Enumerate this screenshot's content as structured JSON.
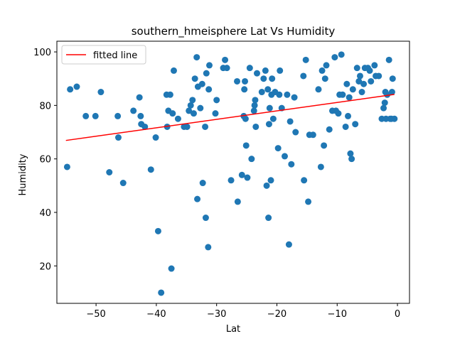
{
  "chart_data": {
    "type": "scatter",
    "title": "southern_hmeisphere Lat Vs Humidity",
    "xlabel": "Lat",
    "ylabel": "Humidity",
    "xlim": [
      -56.5,
      2
    ],
    "ylim": [
      6,
      104
    ],
    "xticks": [
      -50,
      -40,
      -30,
      -20,
      -10,
      0
    ],
    "yticks": [
      20,
      40,
      60,
      80,
      100
    ],
    "grid": false,
    "legend": {
      "placement": "top-left",
      "entries": [
        "fitted line"
      ]
    },
    "colors": {
      "points": "#1f77b4",
      "line": "#ff0000"
    },
    "series": [
      {
        "type": "scatter",
        "points": [
          [
            -54.8,
            57
          ],
          [
            -54.3,
            86
          ],
          [
            -53.2,
            87
          ],
          [
            -51.7,
            76
          ],
          [
            -50.1,
            76
          ],
          [
            -49.2,
            85
          ],
          [
            -47.8,
            55
          ],
          [
            -46.4,
            76
          ],
          [
            -46.3,
            68
          ],
          [
            -45.5,
            51
          ],
          [
            -43.8,
            78
          ],
          [
            -42.8,
            83
          ],
          [
            -42.6,
            76
          ],
          [
            -42.5,
            73
          ],
          [
            -41.9,
            72
          ],
          [
            -40.9,
            56
          ],
          [
            -40.1,
            68
          ],
          [
            -39.7,
            33
          ],
          [
            -39.2,
            10
          ],
          [
            -38.3,
            84
          ],
          [
            -38.2,
            72
          ],
          [
            -38.0,
            78
          ],
          [
            -37.7,
            84
          ],
          [
            -37.5,
            19
          ],
          [
            -37.3,
            77
          ],
          [
            -37.1,
            93
          ],
          [
            -36.4,
            75
          ],
          [
            -35.4,
            72
          ],
          [
            -34.9,
            72
          ],
          [
            -34.6,
            78
          ],
          [
            -34.3,
            80
          ],
          [
            -34.0,
            82
          ],
          [
            -33.8,
            77
          ],
          [
            -33.6,
            90
          ],
          [
            -33.3,
            98
          ],
          [
            -33.2,
            45
          ],
          [
            -33.1,
            87
          ],
          [
            -32.7,
            79
          ],
          [
            -32.4,
            88
          ],
          [
            -32.3,
            51
          ],
          [
            -31.9,
            72
          ],
          [
            -31.8,
            38
          ],
          [
            -31.7,
            92
          ],
          [
            -31.4,
            27
          ],
          [
            -31.3,
            86
          ],
          [
            -31.2,
            95
          ],
          [
            -30.2,
            77
          ],
          [
            -30.0,
            82
          ],
          [
            -28.9,
            94
          ],
          [
            -28.6,
            97
          ],
          [
            -28.3,
            94
          ],
          [
            -27.6,
            52
          ],
          [
            -26.6,
            89
          ],
          [
            -26.5,
            44
          ],
          [
            -25.8,
            54
          ],
          [
            -25.5,
            76
          ],
          [
            -25.4,
            86
          ],
          [
            -25.3,
            89
          ],
          [
            -25.2,
            75
          ],
          [
            -25.1,
            65
          ],
          [
            -24.9,
            53
          ],
          [
            -24.5,
            94
          ],
          [
            -24.2,
            60
          ],
          [
            -23.8,
            78
          ],
          [
            -23.7,
            80
          ],
          [
            -23.6,
            82
          ],
          [
            -23.5,
            72
          ],
          [
            -23.3,
            92
          ],
          [
            -22.5,
            85
          ],
          [
            -22.2,
            90
          ],
          [
            -21.9,
            93
          ],
          [
            -21.7,
            50
          ],
          [
            -21.5,
            86
          ],
          [
            -21.4,
            38
          ],
          [
            -21.3,
            73
          ],
          [
            -21.2,
            79
          ],
          [
            -21.0,
            52
          ],
          [
            -20.9,
            84
          ],
          [
            -20.8,
            90
          ],
          [
            -20.6,
            75
          ],
          [
            -20.3,
            85
          ],
          [
            -19.8,
            64
          ],
          [
            -19.6,
            84
          ],
          [
            -19.5,
            93
          ],
          [
            -19.2,
            79
          ],
          [
            -18.7,
            61
          ],
          [
            -18.3,
            84
          ],
          [
            -18.0,
            28
          ],
          [
            -17.8,
            74
          ],
          [
            -17.6,
            58
          ],
          [
            -17.1,
            83
          ],
          [
            -16.9,
            70
          ],
          [
            -15.6,
            91
          ],
          [
            -15.5,
            52
          ],
          [
            -15.2,
            97
          ],
          [
            -14.8,
            44
          ],
          [
            -14.6,
            69
          ],
          [
            -14.0,
            69
          ],
          [
            -13.1,
            86
          ],
          [
            -12.7,
            57
          ],
          [
            -12.5,
            93
          ],
          [
            -12.2,
            65
          ],
          [
            -12.0,
            90
          ],
          [
            -11.8,
            95
          ],
          [
            -11.3,
            71
          ],
          [
            -10.8,
            78
          ],
          [
            -10.4,
            98
          ],
          [
            -10.2,
            78
          ],
          [
            -9.8,
            77
          ],
          [
            -9.6,
            84
          ],
          [
            -9.3,
            99
          ],
          [
            -9.1,
            84
          ],
          [
            -8.6,
            72
          ],
          [
            -8.4,
            88
          ],
          [
            -8.2,
            76
          ],
          [
            -8.0,
            83
          ],
          [
            -7.8,
            62
          ],
          [
            -7.6,
            60
          ],
          [
            -7.4,
            86
          ],
          [
            -7.0,
            73
          ],
          [
            -6.7,
            94
          ],
          [
            -6.4,
            89
          ],
          [
            -6.2,
            91
          ],
          [
            -5.9,
            85
          ],
          [
            -5.6,
            88
          ],
          [
            -5.4,
            94
          ],
          [
            -4.9,
            94
          ],
          [
            -4.6,
            93
          ],
          [
            -4.4,
            89
          ],
          [
            -3.8,
            95
          ],
          [
            -3.6,
            91
          ],
          [
            -3.1,
            91
          ],
          [
            -2.6,
            75
          ],
          [
            -2.3,
            79
          ],
          [
            -2.1,
            81
          ],
          [
            -1.9,
            75
          ],
          [
            -1.7,
            84
          ],
          [
            -1.4,
            97
          ],
          [
            -1.2,
            75
          ],
          [
            -0.9,
            85
          ],
          [
            -0.8,
            90
          ],
          [
            -0.5,
            75
          ],
          [
            -2.0,
            85
          ],
          [
            -1.0,
            75
          ]
        ]
      },
      {
        "name": "fitted line",
        "type": "line",
        "points": [
          [
            -55.0,
            66.9
          ],
          [
            -0.5,
            84.1
          ]
        ]
      }
    ]
  }
}
